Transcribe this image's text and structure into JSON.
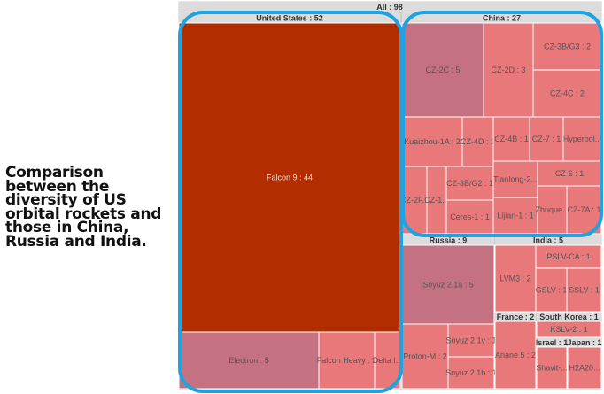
{
  "caption": "Comparison between the diversity of US orbital rockets and those in China, Russia and India.",
  "colors": {
    "frame": "#cccccc",
    "header_bg": "#dcdcdc",
    "header_text": "#333333",
    "tile_red": "#e8787a",
    "tile_mauve": "#c47281",
    "tile_dark": "#b22e00",
    "tile_text": "#555555",
    "tile_text_light": "#f5d5d0",
    "highlight": "#1fa3e0"
  },
  "chart_data": {
    "type": "treemap",
    "root": {
      "label": "All",
      "value": 98,
      "text": "All : 98"
    },
    "groups": [
      {
        "label": "United States",
        "value": 52,
        "text": "United States : 52",
        "items": [
          {
            "label": "Falcon 9",
            "value": 44,
            "text": "Falcon 9 : 44"
          },
          {
            "label": "Electron",
            "value": 5,
            "text": "Electron : 5"
          },
          {
            "label": "Falcon Heavy",
            "value": 2,
            "text": "Falcon Heavy : 2"
          },
          {
            "label": "Delta IV",
            "value": 1,
            "text": "Delta I..."
          }
        ]
      },
      {
        "label": "China",
        "value": 27,
        "text": "China : 27",
        "items": [
          {
            "label": "CZ-2C",
            "value": 5,
            "text": "CZ-2C : 5"
          },
          {
            "label": "CZ-2D",
            "value": 3,
            "text": "CZ-2D : 3"
          },
          {
            "label": "CZ-3B/G3",
            "value": 2,
            "text": "CZ-3B/G3 : 2"
          },
          {
            "label": "CZ-4C",
            "value": 2,
            "text": "CZ-4C : 2"
          },
          {
            "label": "Kuaizhou-1A",
            "value": 2,
            "text": "Kuaizhou-1A : 2"
          },
          {
            "label": "CZ-4D",
            "value": 1,
            "text": "CZ-4D : 1"
          },
          {
            "label": "CZ-4B",
            "value": 1,
            "text": "CZ-4B : 1"
          },
          {
            "label": "CZ-7",
            "value": 1,
            "text": "CZ-7 : 1"
          },
          {
            "label": "Hyperbola",
            "value": 1,
            "text": "Hyperbol..."
          },
          {
            "label": "CZ-2F",
            "value": 1,
            "text": "CZ-2F..."
          },
          {
            "label": "CZ-1",
            "value": 1,
            "text": "CZ-1..."
          },
          {
            "label": "CZ-3B/G2",
            "value": 1,
            "text": "CZ-3B/G2 : 1"
          },
          {
            "label": "Ceres-1",
            "value": 1,
            "text": "Ceres-1 : 1"
          },
          {
            "label": "Tianlong-2",
            "value": 1,
            "text": "Tianlong-2..."
          },
          {
            "label": "Lijian-1",
            "value": 1,
            "text": "Lijian-1 : 1"
          },
          {
            "label": "CZ-6",
            "value": 1,
            "text": "CZ-6 : 1"
          },
          {
            "label": "Zhuque",
            "value": 1,
            "text": "Zhuque..."
          },
          {
            "label": "CZ-7A",
            "value": 1,
            "text": "CZ-7A : 1"
          }
        ]
      },
      {
        "label": "Russia",
        "value": 9,
        "text": "Russia : 9",
        "items": [
          {
            "label": "Soyuz 2.1a",
            "value": 5,
            "text": "Soyuz 2.1a : 5"
          },
          {
            "label": "Proton-M",
            "value": 2,
            "text": "Proton-M : 2"
          },
          {
            "label": "Soyuz 2.1v",
            "value": 1,
            "text": "Soyuz 2.1v : 1"
          },
          {
            "label": "Soyuz 2.1b",
            "value": 1,
            "text": "Soyuz 2.1b : 1"
          }
        ]
      },
      {
        "label": "India",
        "value": 5,
        "text": "India : 5",
        "items": [
          {
            "label": "LVM3",
            "value": 2,
            "text": "LVM3 : 2"
          },
          {
            "label": "PSLV-CA",
            "value": 1,
            "text": "PSLV-CA : 1"
          },
          {
            "label": "GSLV",
            "value": 1,
            "text": "GSLV : 1"
          },
          {
            "label": "SSLV",
            "value": 1,
            "text": "SSLV : 1"
          }
        ]
      },
      {
        "label": "France",
        "value": 2,
        "text": "France : 2",
        "items": [
          {
            "label": "Ariane 5",
            "value": 2,
            "text": "Ariane 5 : 2"
          }
        ]
      },
      {
        "label": "South Korea",
        "value": 1,
        "text": "South Korea : 1",
        "items": [
          {
            "label": "KSLV-2",
            "value": 1,
            "text": "KSLV-2 : 1"
          }
        ]
      },
      {
        "label": "Israel",
        "value": 1,
        "text": "Israel : 1",
        "items": [
          {
            "label": "Shavit",
            "value": 1,
            "text": "Shavit-..."
          }
        ]
      },
      {
        "label": "Japan",
        "value": 1,
        "text": "Japan : 1",
        "items": [
          {
            "label": "H2A",
            "value": 1,
            "text": "H2A20..."
          }
        ]
      }
    ],
    "highlighted_groups": [
      "United States",
      "China"
    ]
  }
}
